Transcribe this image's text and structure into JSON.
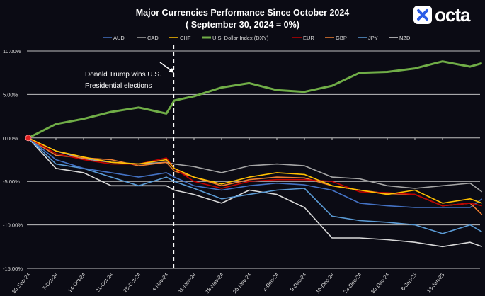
{
  "chart_data": {
    "type": "line",
    "title": "Major Currencies Performance Since October 2024",
    "subtitle": "( September 30, 2024 = 0%)",
    "xlabel": "",
    "ylabel": "",
    "ylim": [
      -15,
      10
    ],
    "yticks": [
      "10.00%",
      "5.00%",
      "0.00%",
      "-5.00%",
      "-10.00%",
      "-15.00%"
    ],
    "ytick_values": [
      10,
      5,
      0,
      -5,
      -10,
      -15
    ],
    "xticks": [
      "30-Sep-24",
      "7-Oct-24",
      "14-Oct-24",
      "21-Oct-24",
      "28-Oct-24",
      "4-Nov-24",
      "11-Nov-24",
      "18-Nov-24",
      "25-Nov-24",
      "2-Dec-24",
      "9-Dec-24",
      "16-Dec-24",
      "23-Dec-24",
      "30-Dec-24",
      "6-Jan-25",
      "13-Jan-25"
    ],
    "grid": true,
    "legend_position": "top",
    "x": [
      "2024-09-30",
      "2024-10-07",
      "2024-10-14",
      "2024-10-21",
      "2024-10-28",
      "2024-11-04",
      "2024-11-06",
      "2024-11-11",
      "2024-11-18",
      "2024-11-25",
      "2024-12-02",
      "2024-12-09",
      "2024-12-16",
      "2024-12-23",
      "2024-12-30",
      "2025-01-06",
      "2025-01-13",
      "2025-01-20",
      "2025-01-23"
    ],
    "series": [
      {
        "name": "AUD",
        "color": "#4472c4",
        "values": [
          0,
          -2.5,
          -3.5,
          -4.0,
          -4.5,
          -4.0,
          -4.5,
          -5.5,
          -6.0,
          -5.5,
          -5.2,
          -5.4,
          -6.0,
          -7.5,
          -7.8,
          -8.0,
          -8.0,
          -8.0,
          -7.0
        ]
      },
      {
        "name": "CAD",
        "color": "#a5a5a5",
        "values": [
          0,
          -1.5,
          -2.4,
          -2.8,
          -3.0,
          -2.8,
          -3.0,
          -3.3,
          -4.0,
          -3.2,
          -3.0,
          -3.2,
          -4.5,
          -4.7,
          -5.5,
          -5.8,
          -5.5,
          -5.2,
          -6.2
        ]
      },
      {
        "name": "CHF",
        "color": "#ffc000",
        "values": [
          0,
          -1.5,
          -2.2,
          -2.8,
          -3.0,
          -2.5,
          -3.5,
          -4.5,
          -5.3,
          -4.5,
          -4.0,
          -4.2,
          -5.5,
          -6.0,
          -6.5,
          -6.0,
          -7.5,
          -7.0,
          -7.5
        ]
      },
      {
        "name": "U.S. Dollar Index (DXY)",
        "color": "#70ad47",
        "values": [
          0,
          1.6,
          2.2,
          3.0,
          3.5,
          2.8,
          4.3,
          4.8,
          5.8,
          6.3,
          5.5,
          5.3,
          6.0,
          7.5,
          7.6,
          8.0,
          8.8,
          8.2,
          8.6
        ]
      },
      {
        "name": "EUR",
        "color": "#c00000",
        "values": [
          0,
          -1.8,
          -2.5,
          -3.0,
          -3.0,
          -2.3,
          -3.5,
          -5.0,
          -5.8,
          -5.0,
          -4.8,
          -4.8,
          -5.0,
          -6.2,
          -6.3,
          -6.5,
          -7.8,
          -7.5,
          -7.8
        ]
      },
      {
        "name": "GBP",
        "color": "#ed7d31",
        "values": [
          0,
          -2.0,
          -2.3,
          -2.5,
          -3.2,
          -2.8,
          -3.8,
          -4.5,
          -5.5,
          -4.8,
          -4.5,
          -4.6,
          -5.5,
          -6.0,
          -6.4,
          -6.5,
          -7.8,
          -7.5,
          -8.8
        ]
      },
      {
        "name": "JPY",
        "color": "#5b9bd5",
        "values": [
          0,
          -3.0,
          -3.5,
          -4.5,
          -5.5,
          -4.5,
          -5.0,
          -5.8,
          -7.0,
          -6.5,
          -6.0,
          -5.8,
          -9.0,
          -9.5,
          -9.7,
          -10.0,
          -11.0,
          -10.0,
          -10.8
        ]
      },
      {
        "name": "NZD",
        "color": "#d9d9d9",
        "values": [
          0,
          -3.5,
          -4.0,
          -5.5,
          -5.5,
          -5.5,
          -6.0,
          -6.5,
          -7.5,
          -6.0,
          -6.5,
          -8.0,
          -11.5,
          -11.5,
          -11.7,
          -12.0,
          -12.5,
          -12.0,
          -12.5
        ]
      }
    ],
    "annotation": {
      "text_line1": "Donald Trump wins U.S.",
      "text_line2": "Presidential elections",
      "date": "2024-11-06"
    },
    "origin_marker_color": "#e02020"
  },
  "brand": {
    "logo_text": "octa",
    "accent": "#2b5ce6"
  }
}
